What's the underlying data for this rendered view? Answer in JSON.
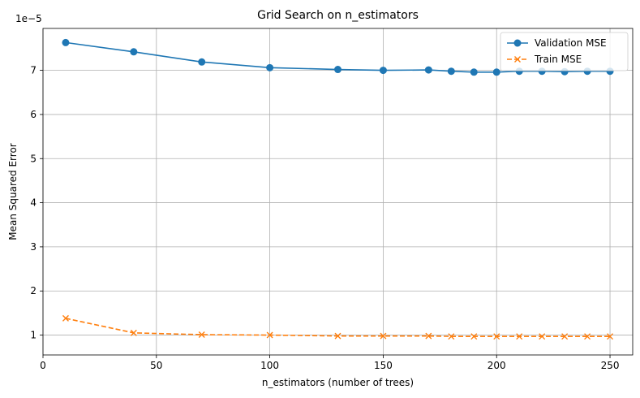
{
  "chart_data": {
    "type": "line",
    "title": "Grid Search on n_estimators",
    "xlabel": "n_estimators (number of trees)",
    "ylabel": "Mean Squared Error",
    "y_offset_label": "1e−5",
    "xlim": [
      0,
      260
    ],
    "ylim": [
      0.55,
      7.95
    ],
    "x_ticks": [
      0,
      50,
      100,
      150,
      200,
      250
    ],
    "y_ticks": [
      1,
      2,
      3,
      4,
      5,
      6,
      7
    ],
    "grid": true,
    "legend_position": "top-right",
    "x": [
      10,
      40,
      70,
      100,
      130,
      150,
      170,
      180,
      190,
      200,
      210,
      220,
      230,
      240,
      250
    ],
    "series": [
      {
        "name": "Validation MSE",
        "color": "#1f77b4",
        "marker": "circle",
        "linestyle": "solid",
        "values": [
          7.63,
          7.42,
          7.19,
          7.06,
          7.02,
          7.0,
          7.01,
          6.98,
          6.96,
          6.96,
          6.98,
          6.98,
          6.97,
          6.98,
          6.98
        ]
      },
      {
        "name": "Train MSE",
        "color": "#ff7f0e",
        "marker": "x",
        "linestyle": "dashed",
        "values": [
          1.38,
          1.05,
          1.01,
          1.0,
          0.98,
          0.98,
          0.98,
          0.97,
          0.97,
          0.97,
          0.97,
          0.97,
          0.97,
          0.97,
          0.97
        ]
      }
    ]
  }
}
